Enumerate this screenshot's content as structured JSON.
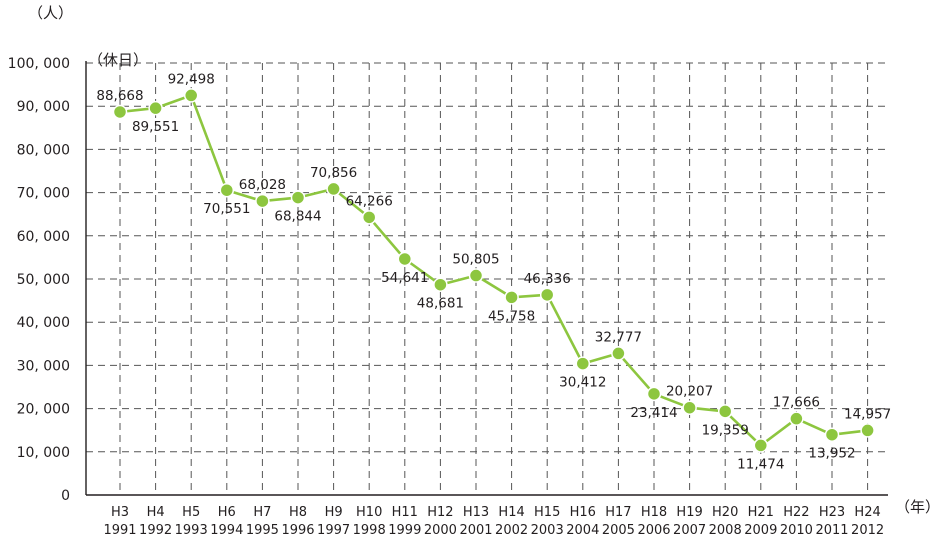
{
  "chart_data": {
    "type": "line",
    "title": "",
    "ylabel_unit": "（人）",
    "series_label": "（休日）",
    "xlabel_unit": "（年）",
    "ylim": [
      0,
      100000
    ],
    "yticks": [
      {
        "value": 0,
        "label": "0"
      },
      {
        "value": 10000,
        "label": "10, 000"
      },
      {
        "value": 20000,
        "label": "20, 000"
      },
      {
        "value": 30000,
        "label": "30, 000"
      },
      {
        "value": 40000,
        "label": "40, 000"
      },
      {
        "value": 50000,
        "label": "50, 000"
      },
      {
        "value": 60000,
        "label": "60, 000"
      },
      {
        "value": 70000,
        "label": "70, 000"
      },
      {
        "value": 80000,
        "label": "80, 000"
      },
      {
        "value": 90000,
        "label": "90, 000"
      },
      {
        "value": 100000,
        "label": "100, 000"
      }
    ],
    "categories": [
      {
        "era": "H3",
        "year": "1991"
      },
      {
        "era": "H4",
        "year": "1992"
      },
      {
        "era": "H5",
        "year": "1993"
      },
      {
        "era": "H6",
        "year": "1994"
      },
      {
        "era": "H7",
        "year": "1995"
      },
      {
        "era": "H8",
        "year": "1996"
      },
      {
        "era": "H9",
        "year": "1997"
      },
      {
        "era": "H10",
        "year": "1998"
      },
      {
        "era": "H11",
        "year": "1999"
      },
      {
        "era": "H12",
        "year": "2000"
      },
      {
        "era": "H13",
        "year": "2001"
      },
      {
        "era": "H14",
        "year": "2002"
      },
      {
        "era": "H15",
        "year": "2003"
      },
      {
        "era": "H16",
        "year": "2004"
      },
      {
        "era": "H17",
        "year": "2005"
      },
      {
        "era": "H18",
        "year": "2006"
      },
      {
        "era": "H19",
        "year": "2007"
      },
      {
        "era": "H20",
        "year": "2008"
      },
      {
        "era": "H21",
        "year": "2009"
      },
      {
        "era": "H22",
        "year": "2010"
      },
      {
        "era": "H23",
        "year": "2011"
      },
      {
        "era": "H24",
        "year": "2012"
      }
    ],
    "series": [
      {
        "values": [
          88668,
          89551,
          92498,
          70551,
          68028,
          68844,
          70856,
          64266,
          54641,
          48681,
          50805,
          45758,
          46336,
          30412,
          32777,
          23414,
          20207,
          19359,
          11474,
          17666,
          13952,
          14957
        ],
        "labels": [
          "88,668",
          "89,551",
          "92,498",
          "70,551",
          "68,028",
          "68,844",
          "70,856",
          "64,266",
          "54,641",
          "48,681",
          "50,805",
          "45,758",
          "46,336",
          "30,412",
          "32,777",
          "23,414",
          "20,207",
          "19,359",
          "11,474",
          "17,666",
          "13,952",
          "14,957"
        ],
        "label_position": [
          "above",
          "below",
          "above",
          "below",
          "above",
          "below",
          "above",
          "above",
          "below",
          "below",
          "above",
          "below",
          "above",
          "below",
          "above",
          "below",
          "above",
          "below",
          "below",
          "above",
          "below",
          "above"
        ]
      }
    ],
    "grid": true,
    "line_color": "#8dc63f",
    "marker_color": "#8dc63f"
  }
}
